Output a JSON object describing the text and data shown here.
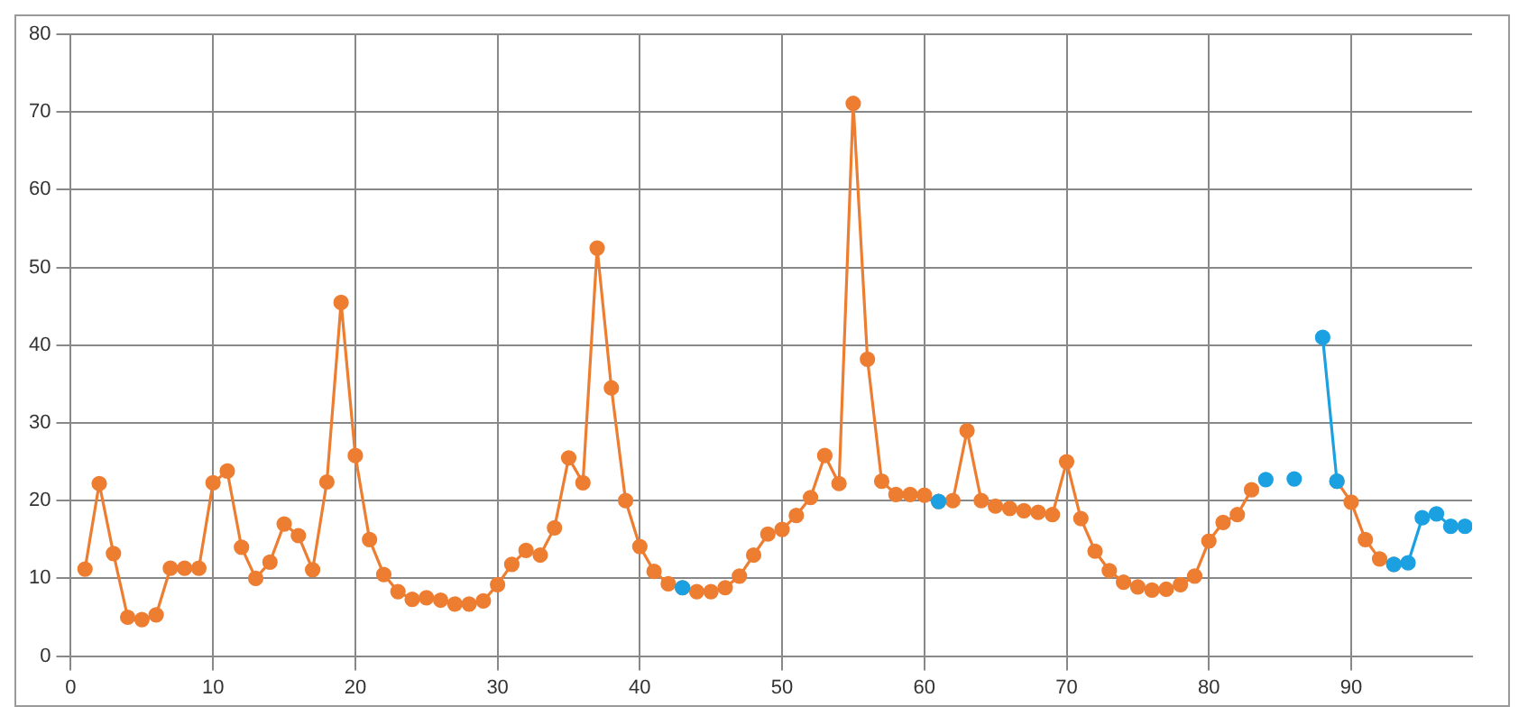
{
  "chart_data": {
    "type": "line",
    "xlim": [
      0,
      98.5
    ],
    "xticks": [
      0,
      10,
      20,
      30,
      40,
      50,
      60,
      70,
      80,
      90
    ],
    "ylim": [
      0,
      80
    ],
    "yticks": [
      0,
      10,
      20,
      30,
      40,
      50,
      60,
      70,
      80
    ],
    "grid": true,
    "legend": false,
    "marker": "circle",
    "line_style": "solid",
    "series": [
      {
        "color": "#ed7d31",
        "x": [
          1,
          2,
          3,
          4,
          5,
          6,
          7,
          8,
          9,
          10,
          11,
          12,
          13,
          14,
          15,
          16,
          17,
          18,
          19,
          20,
          21,
          22,
          23,
          24,
          25,
          26,
          27,
          28,
          29,
          30,
          31,
          32,
          33,
          34,
          35,
          36,
          37,
          38,
          39,
          40,
          41,
          42,
          43,
          44,
          45,
          46,
          47,
          48,
          49,
          50,
          51,
          52,
          53,
          54,
          55,
          56,
          57,
          58,
          59,
          60,
          61,
          62,
          63,
          64,
          65,
          66,
          67,
          68,
          69,
          70,
          71,
          72,
          73,
          74,
          75,
          76,
          77,
          78,
          79,
          80,
          81,
          82,
          83,
          84,
          89,
          90,
          91,
          92,
          93
        ],
        "values": [
          11.2,
          22.2,
          13.2,
          5,
          4.7,
          5.3,
          11.3,
          11.3,
          11.3,
          22.3,
          23.8,
          14,
          10,
          12.1,
          17,
          15.5,
          11.1,
          22.4,
          45.5,
          25.8,
          15,
          10.5,
          8.3,
          7.3,
          7.5,
          7.2,
          6.7,
          6.7,
          7.1,
          9.2,
          11.8,
          13.6,
          13,
          16.5,
          25.5,
          22.3,
          52.5,
          34.5,
          20,
          14.1,
          10.9,
          9.3,
          8.8,
          8.3,
          8.3,
          8.8,
          10.3,
          13,
          15.7,
          16.3,
          18.1,
          20.4,
          25.8,
          22.2,
          71.1,
          38.2,
          22.5,
          20.8,
          20.8,
          20.7,
          19.9,
          20,
          29,
          20,
          19.3,
          19,
          18.7,
          18.5,
          18.2,
          25,
          17.7,
          13.5,
          11,
          9.5,
          8.9,
          8.5,
          8.6,
          9.2,
          10.3,
          14.8,
          17.2,
          18.2,
          21.4,
          null,
          22.5,
          19.8,
          15,
          12.5,
          11.8
        ]
      },
      {
        "color": "#1ba1e2",
        "x": [
          43,
          44,
          61,
          62,
          84,
          85,
          86,
          87,
          88,
          89,
          90,
          93,
          94,
          95,
          96,
          97,
          98
        ],
        "values": [
          8.8,
          null,
          19.9,
          null,
          22.7,
          null,
          22.8,
          null,
          41,
          22.5,
          null,
          11.8,
          12,
          17.8,
          18.3,
          16.7,
          16.7
        ]
      }
    ]
  }
}
